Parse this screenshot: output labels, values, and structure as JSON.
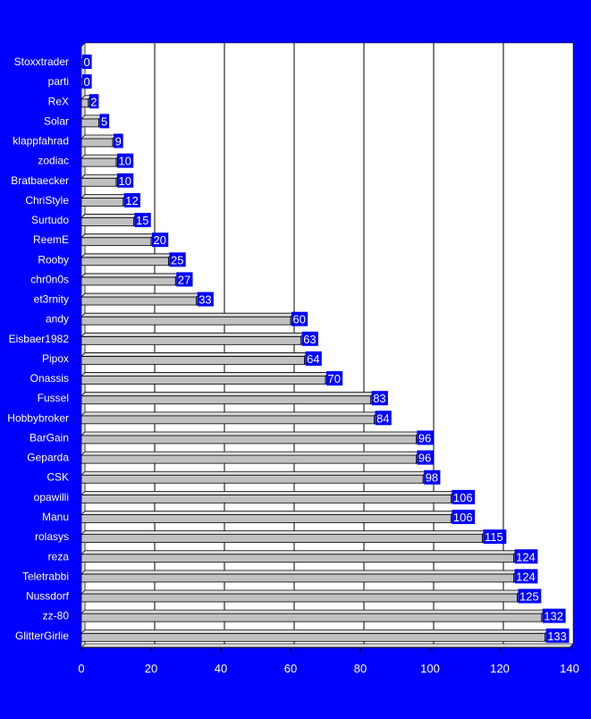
{
  "colors": {
    "frame": "#0000ff",
    "plot": "#ffffff",
    "gridline": "#000000",
    "bar_face": "#c0c0c0",
    "bar_top": "#dcdcdc",
    "bar_side": "#808080",
    "value_box": "#0000ff",
    "text": "#ffffff"
  },
  "chart_data": {
    "type": "bar",
    "orientation": "horizontal",
    "categories": [
      "Stoxxtrader",
      "parti",
      "ReX",
      "Solar",
      "klappfahrad",
      "zodiac",
      "Bratbaecker",
      "ChriStyle",
      "Surtudo",
      "ReemE",
      "Rooby",
      "chr0n0s",
      "et3rnity",
      "andy",
      "Eisbaer1982",
      "Pipox",
      "Onassis",
      "Fussel",
      "Hobbybroker",
      "BarGain",
      "Geparda",
      "CSK",
      "opawilli",
      "Manu",
      "rolasys",
      "reza",
      "Teletrabbi",
      "Nussdorf",
      "zz-80",
      "GlitterGirlie"
    ],
    "values": [
      0,
      0,
      2,
      5,
      9,
      10,
      10,
      12,
      15,
      20,
      25,
      27,
      33,
      60,
      63,
      64,
      70,
      83,
      84,
      96,
      96,
      98,
      106,
      106,
      115,
      124,
      124,
      125,
      132,
      133
    ],
    "xlim": [
      0,
      140
    ],
    "xticks": [
      0,
      20,
      40,
      60,
      80,
      100,
      120,
      140
    ],
    "grid": true,
    "data_labels": true
  }
}
